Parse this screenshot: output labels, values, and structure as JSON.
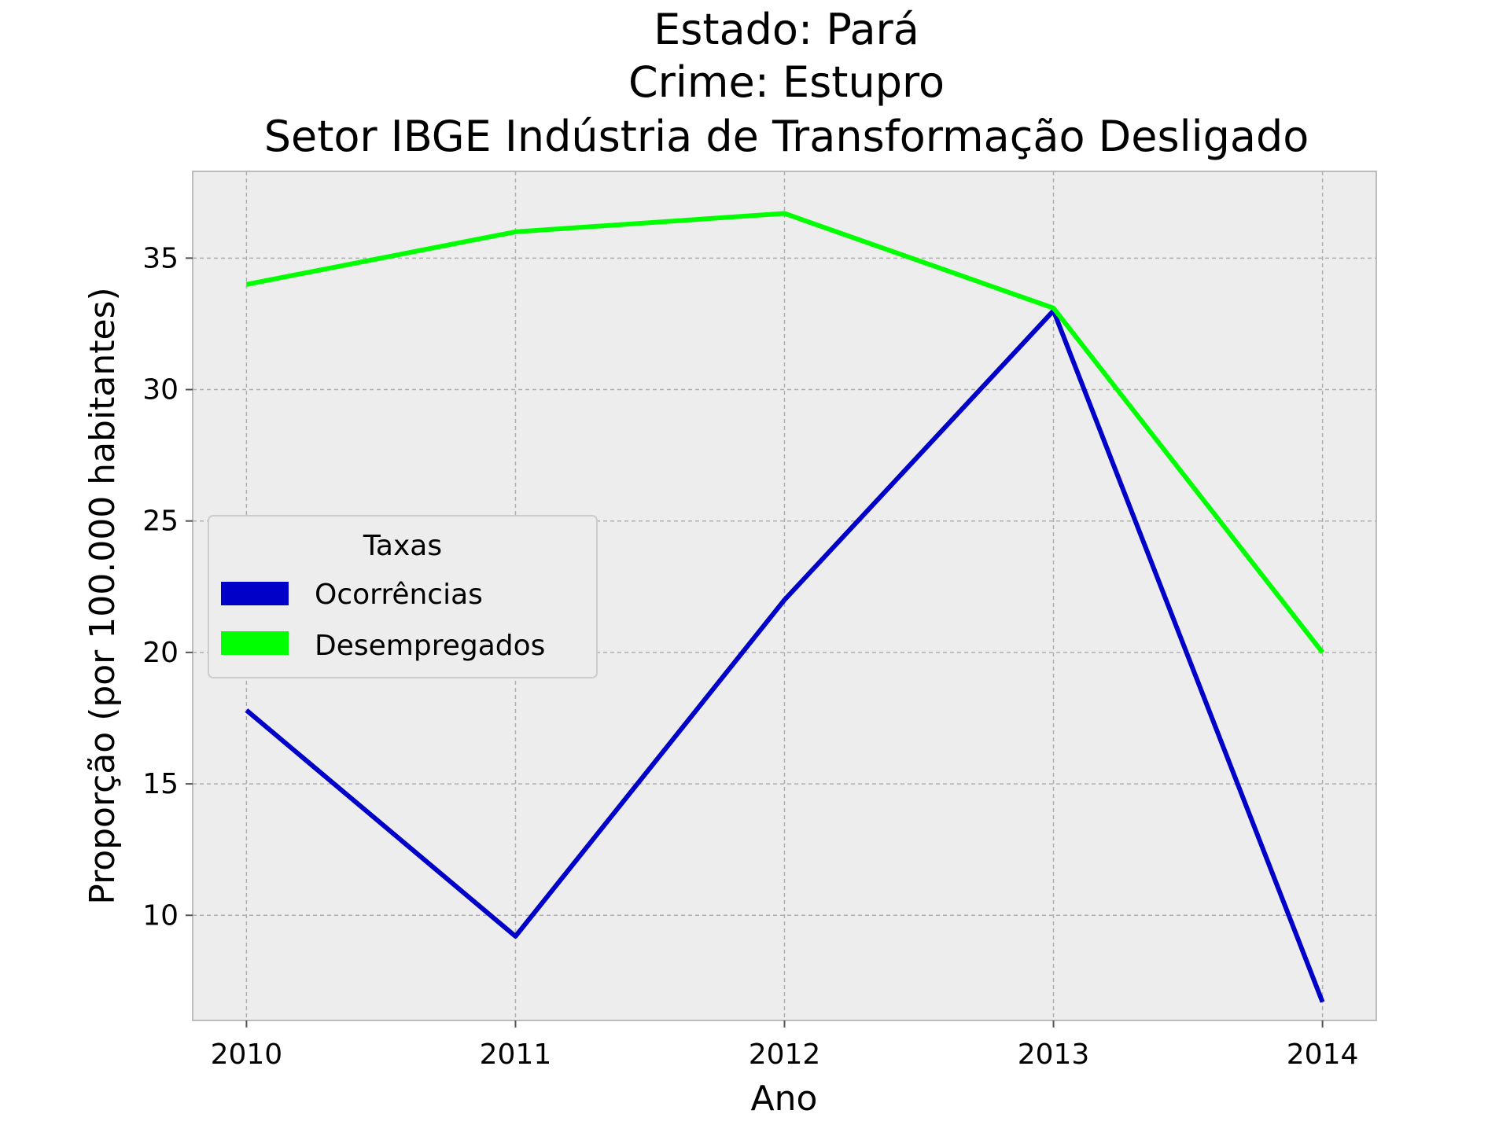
{
  "chart_data": {
    "type": "line",
    "title_lines": [
      "Estado: Pará",
      "Crime: Estupro",
      "Setor IBGE  Indústria de Transformação   Desligado"
    ],
    "xlabel": "Ano",
    "ylabel": "Proporção (por 100.000 habitantes)",
    "x": [
      2010,
      2011,
      2012,
      2013,
      2014
    ],
    "x_tick_labels": [
      "2010",
      "2011",
      "2012",
      "2013",
      "2014"
    ],
    "y_ticks": [
      10,
      15,
      20,
      25,
      30,
      35
    ],
    "y_tick_labels": [
      "10",
      "15",
      "20",
      "25",
      "30",
      "35"
    ],
    "xlim": [
      2009.8,
      2014.2
    ],
    "ylim": [
      6.0,
      38.3
    ],
    "grid": true,
    "legend": {
      "title": "Taxas",
      "placement": "center-left"
    },
    "series": [
      {
        "name": "Ocorrências",
        "color": "#0000c8",
        "values": [
          17.8,
          9.2,
          22.0,
          33.0,
          6.7
        ]
      },
      {
        "name": "Desempregados",
        "color": "#00ff00",
        "values": [
          34.0,
          36.0,
          36.7,
          33.1,
          20.0
        ]
      }
    ],
    "background_color": "#ededed",
    "grid_color": "#b0b0b0"
  }
}
